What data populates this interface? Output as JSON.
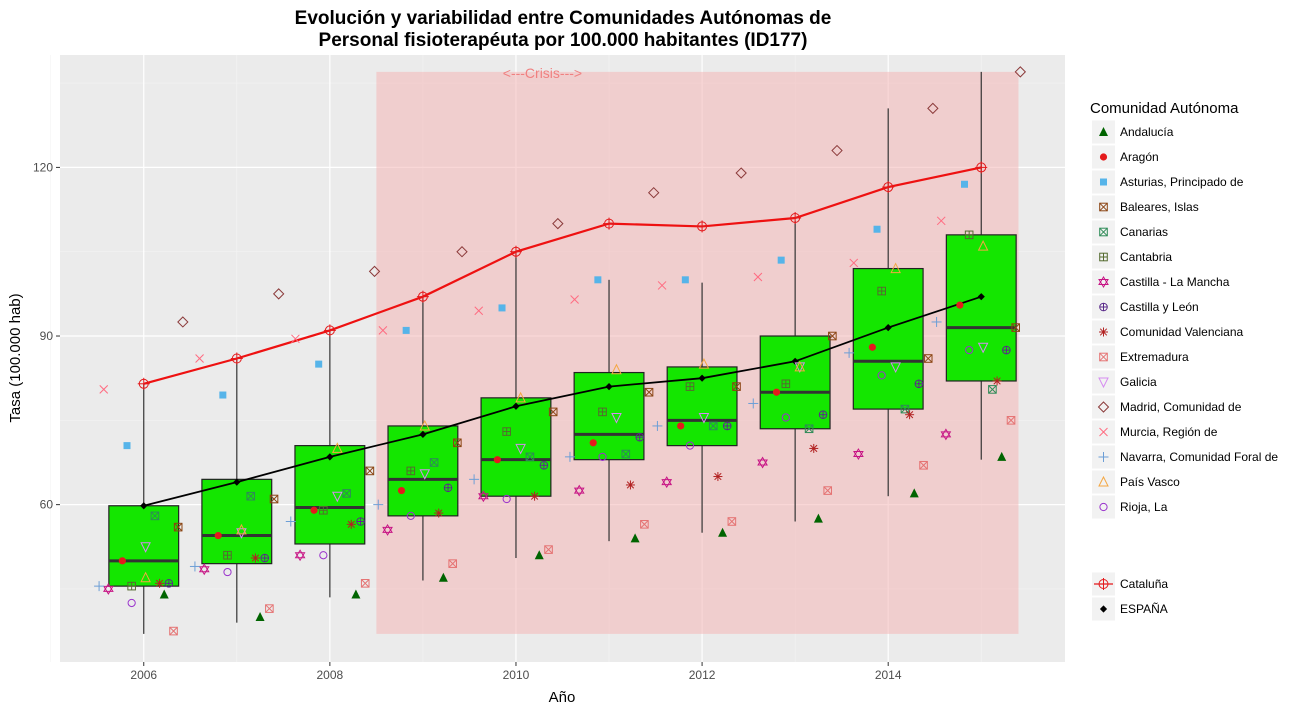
{
  "chart_data": {
    "type": "boxplot",
    "title_line1": "Evolución y variabilidad entre Comunidades Autónomas de",
    "title_line2": "Personal fisioterapéuta por 100.000 habitantes (ID177)",
    "xlabel": "Año",
    "ylabel": "Tasa (100.000 hab)",
    "xlim": [
      2005.1,
      2015.9
    ],
    "ylim": [
      32,
      140
    ],
    "x_ticks": [
      2006,
      2008,
      2010,
      2012,
      2014
    ],
    "y_ticks": [
      60,
      90,
      120
    ],
    "grid": true,
    "crisis": {
      "label": "<---Crisis--->",
      "x_range": [
        2008.5,
        2015.4
      ],
      "y_range": [
        37,
        137
      ],
      "color": "#f4b6b6"
    },
    "years": [
      2006,
      2007,
      2008,
      2009,
      2010,
      2011,
      2012,
      2013,
      2014,
      2015
    ],
    "boxes": [
      {
        "year": 2006,
        "min": 37,
        "q1": 45.5,
        "median": 50,
        "q3": 59.8,
        "max": 81.5
      },
      {
        "year": 2007,
        "min": 39,
        "q1": 49.5,
        "median": 54.5,
        "q3": 64.5,
        "max": 86
      },
      {
        "year": 2008,
        "min": 43.5,
        "q1": 53,
        "median": 59.5,
        "q3": 70.5,
        "max": 91
      },
      {
        "year": 2009,
        "min": 46.5,
        "q1": 58,
        "median": 64.5,
        "q3": 74,
        "max": 97
      },
      {
        "year": 2010,
        "min": 50.5,
        "q1": 61.5,
        "median": 68,
        "q3": 79,
        "max": 105
      },
      {
        "year": 2011,
        "min": 53.5,
        "q1": 68,
        "median": 72.5,
        "q3": 83.5,
        "max": 100
      },
      {
        "year": 2012,
        "min": 55,
        "q1": 70.5,
        "median": 75,
        "q3": 84.5,
        "max": 99.5
      },
      {
        "year": 2013,
        "min": 57,
        "q1": 73.5,
        "median": 80,
        "q3": 90,
        "max": 110.5
      },
      {
        "year": 2014,
        "min": 61.5,
        "q1": 77,
        "median": 85.5,
        "q3": 102,
        "max": 130.5
      },
      {
        "year": 2015,
        "min": 68,
        "q1": 82,
        "median": 91.5,
        "q3": 108,
        "max": 137
      }
    ],
    "line_cataluna": [
      81.5,
      86,
      91,
      97,
      105,
      110,
      109.5,
      111,
      116.5,
      120
    ],
    "line_espana": [
      59.8,
      64,
      68.5,
      72.5,
      77.5,
      81,
      82.5,
      85.5,
      91.5,
      97
    ],
    "legend_title": "Comunidad Autónoma",
    "series": [
      {
        "name": "Andalucía",
        "shape": "triangle-filled",
        "color": "#006400",
        "dx": 0.25,
        "values": [
          44,
          40,
          44,
          47,
          51,
          54,
          55,
          57.5,
          62,
          68.5
        ]
      },
      {
        "name": "Aragón",
        "shape": "circle-filled",
        "color": "#e41a1c",
        "dx": -0.2,
        "values": [
          50,
          54.5,
          59,
          62.5,
          68,
          71,
          74,
          80,
          88,
          95.5
        ]
      },
      {
        "name": "Asturias, Principado de",
        "shape": "square-filled",
        "color": "#56b4e9",
        "dx": -0.15,
        "values": [
          70.5,
          79.5,
          85,
          91,
          95,
          100,
          100,
          103.5,
          109,
          117
        ]
      },
      {
        "name": "Baleares, Islas",
        "shape": "square-x",
        "color": "#8b4513",
        "dx": 0.4,
        "values": [
          56,
          61,
          66,
          71,
          76.5,
          80,
          81,
          90,
          86,
          91.5
        ]
      },
      {
        "name": "Canarias",
        "shape": "square-x",
        "color": "#2e8b57",
        "dx": 0.15,
        "values": [
          58,
          61.5,
          62,
          67.5,
          68.5,
          69,
          74,
          73.5,
          77,
          80.5
        ]
      },
      {
        "name": "Cantabria",
        "shape": "square-plus",
        "color": "#556b2f",
        "dx": -0.1,
        "values": [
          45.5,
          51,
          59,
          66,
          73,
          76.5,
          81,
          81.5,
          98,
          108
        ]
      },
      {
        "name": "Castilla - La Mancha",
        "shape": "star-of-david",
        "color": "#c71585",
        "dx": -0.35,
        "values": [
          45,
          48.5,
          51,
          55.5,
          61.5,
          62.5,
          64,
          67.5,
          69,
          72.5
        ]
      },
      {
        "name": "Castilla y León",
        "shape": "circle-plus",
        "color": "#5a2a8a",
        "dx": 0.3,
        "values": [
          46,
          50.5,
          57,
          63,
          67,
          72,
          74,
          76,
          81.5,
          87.5
        ]
      },
      {
        "name": "Comunidad Valenciana",
        "shape": "asterisk",
        "color": "#b22222",
        "dx": 0.2,
        "values": [
          46,
          50.5,
          56.5,
          58.5,
          61.5,
          63.5,
          65,
          70,
          76,
          82
        ]
      },
      {
        "name": "Extremadura",
        "shape": "square-x",
        "color": "#e57373",
        "dx": 0.35,
        "values": [
          37.5,
          41.5,
          46,
          49.5,
          52,
          56.5,
          57,
          62.5,
          67,
          75
        ]
      },
      {
        "name": "Galicia",
        "shape": "triangle-down",
        "color": "#d58cf0",
        "dx": 0.05,
        "values": [
          52.5,
          55,
          61.5,
          65.5,
          70,
          75.5,
          75.5,
          84.5,
          84.5,
          88
        ]
      },
      {
        "name": "Madrid, Comunidad de",
        "shape": "diamond",
        "color": "#8b3a3a",
        "dx": 0.45,
        "values": [
          92.5,
          97.5,
          101.5,
          105,
          110,
          115.5,
          119,
          123,
          130.5,
          137
        ]
      },
      {
        "name": "Murcia, Región de",
        "shape": "cross-x",
        "color": "#ff6b81",
        "dx": -0.4,
        "values": [
          80.5,
          86,
          89.5,
          91,
          94.5,
          96.5,
          99,
          100.5,
          103,
          110.5
        ]
      },
      {
        "name": "Navarra, Comunidad Foral de",
        "shape": "plus",
        "color": "#6c9ed6",
        "dx": -0.45,
        "values": [
          45.5,
          49,
          57,
          60,
          64.5,
          68.5,
          74,
          78,
          87,
          92.5
        ]
      },
      {
        "name": "País Vasco",
        "shape": "triangle-open",
        "color": "#f4a742",
        "dx": 0.05,
        "values": [
          47,
          55.5,
          70,
          74,
          79,
          84,
          85,
          84.5,
          102,
          106
        ]
      },
      {
        "name": "Rioja, La",
        "shape": "circle-open",
        "color": "#9932cc",
        "dx": -0.1,
        "values": [
          42.5,
          48,
          51,
          58,
          61,
          68.5,
          70.5,
          75.5,
          83,
          87.5
        ]
      },
      {
        "name": "Cataluña",
        "shape": "circle-crossed",
        "color": "#e41a1c"
      },
      {
        "name": "ESPAÑA",
        "shape": "diamond-filled",
        "color": "#000000"
      }
    ]
  }
}
